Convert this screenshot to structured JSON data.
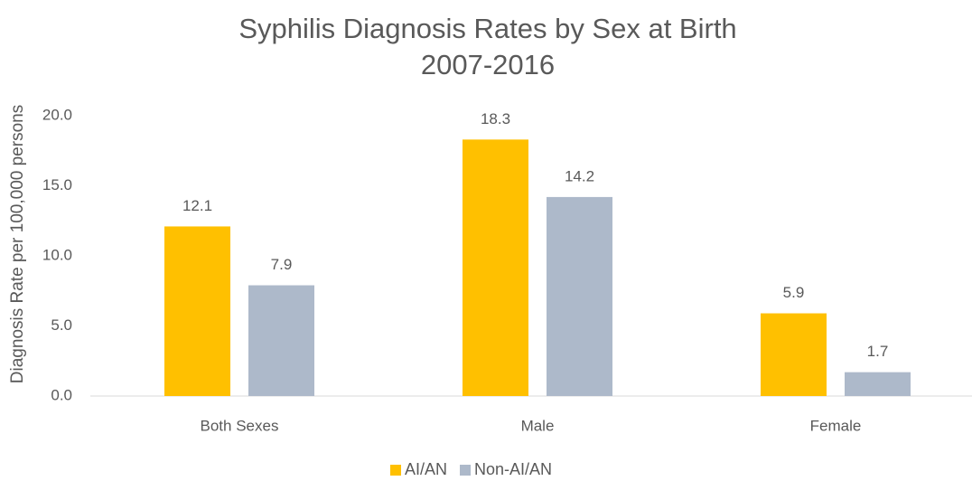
{
  "chart_data": {
    "type": "bar",
    "title": "Syphilis Diagnosis Rates by Sex at Birth",
    "subtitle": "2007-2016",
    "y_label": "Diagnosis Rate per 100,000 persons",
    "categories": [
      "Both Sexes",
      "Male",
      "Female"
    ],
    "series": [
      {
        "name": "AI/AN",
        "color": "#ffc000",
        "values": [
          12.1,
          18.3,
          5.9
        ]
      },
      {
        "name": "Non-AI/AN",
        "color": "#adb9ca",
        "values": [
          7.9,
          14.2,
          1.7
        ]
      }
    ],
    "ylim": [
      0,
      20
    ],
    "yticks": [
      {
        "value": 0,
        "label": "0.0"
      },
      {
        "value": 5,
        "label": "5.0"
      },
      {
        "value": 10,
        "label": "10.0"
      },
      {
        "value": 15,
        "label": "15.0"
      },
      {
        "value": 20,
        "label": "20.0"
      }
    ],
    "grid": false,
    "legend": "bottom"
  }
}
